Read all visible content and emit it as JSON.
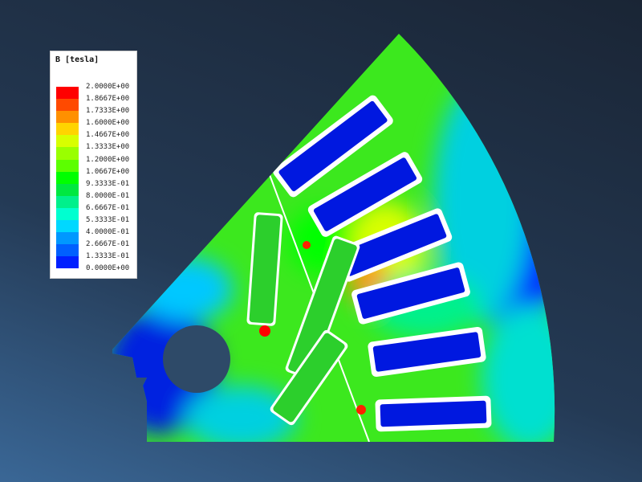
{
  "legend": {
    "title": "B [tesla]",
    "labels": [
      "2.0000E+00",
      "1.8667E+00",
      "1.7333E+00",
      "1.6000E+00",
      "1.4667E+00",
      "1.3333E+00",
      "1.2000E+00",
      "1.0667E+00",
      "9.3333E-01",
      "8.0000E-01",
      "6.6667E-01",
      "5.3333E-01",
      "4.0000E-01",
      "2.6667E-01",
      "1.3333E-01",
      "0.0000E+00"
    ],
    "colors": [
      "#ff0000",
      "#ff4a00",
      "#ff9000",
      "#ffd400",
      "#d8ff00",
      "#9aff00",
      "#5cff00",
      "#00ff00",
      "#00e840",
      "#00f08c",
      "#00ffd0",
      "#00d8ff",
      "#0098ff",
      "#0060ff",
      "#0020ff",
      "#0000ff"
    ]
  }
}
